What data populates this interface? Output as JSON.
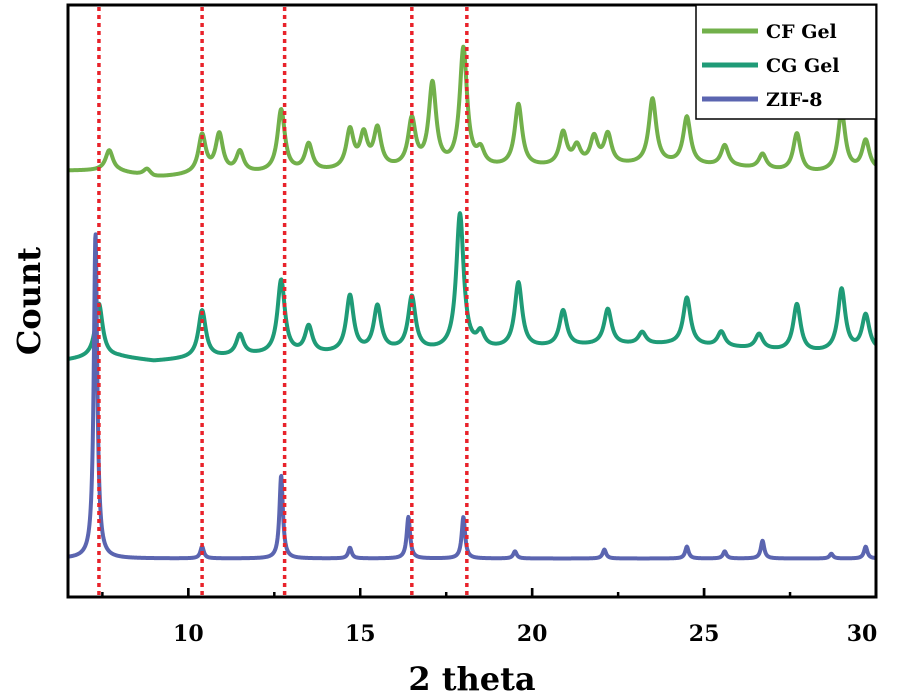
{
  "chart_data": {
    "type": "line",
    "title": "",
    "xlabel": "2 theta",
    "ylabel": "Count",
    "xlim": [
      6.5,
      30
    ],
    "ylim": [
      0,
      100
    ],
    "x_ticks": [
      10,
      15,
      20,
      25,
      30
    ],
    "x_tick_labels": [
      "10",
      "15",
      "20",
      "25",
      "30"
    ],
    "y_ticks_shown": false,
    "legend_position": "top-right",
    "reference_lines": {
      "style": "dotted",
      "color": "#e8232b",
      "x": [
        7.4,
        10.4,
        12.8,
        16.5,
        18.1
      ]
    },
    "series": [
      {
        "name": "CF Gel",
        "color": "#72b04b",
        "peak_width": 0.13,
        "baseline": [
          [
            6.5,
            72
          ],
          [
            7.4,
            72
          ],
          [
            8,
            71.8
          ],
          [
            9,
            70.8
          ],
          [
            10,
            71.2
          ],
          [
            12,
            71.5
          ],
          [
            14,
            71.8
          ],
          [
            16,
            72.2
          ],
          [
            18,
            72.3
          ],
          [
            20,
            72.5
          ],
          [
            22,
            72.8
          ],
          [
            24,
            73
          ],
          [
            26,
            72.5
          ],
          [
            28,
            71.5
          ],
          [
            30,
            72
          ]
        ],
        "peaks": [
          [
            7.7,
            3.5
          ],
          [
            8.8,
            1.2
          ],
          [
            10.4,
            6.5
          ],
          [
            10.9,
            6.5
          ],
          [
            11.5,
            3.5
          ],
          [
            12.7,
            10.5
          ],
          [
            13.5,
            4.5
          ],
          [
            14.7,
            6.5
          ],
          [
            15.1,
            5.5
          ],
          [
            15.5,
            6.5
          ],
          [
            16.5,
            8
          ],
          [
            17.1,
            14
          ],
          [
            18.0,
            20
          ],
          [
            18.5,
            2.5
          ],
          [
            19.6,
            10.5
          ],
          [
            20.9,
            5.5
          ],
          [
            21.3,
            3
          ],
          [
            21.8,
            4.5
          ],
          [
            22.2,
            5
          ],
          [
            23.5,
            11
          ],
          [
            24.5,
            8
          ],
          [
            25.6,
            3.5
          ],
          [
            26.7,
            2.5
          ],
          [
            27.7,
            6.5
          ],
          [
            29.0,
            10
          ],
          [
            29.7,
            5
          ]
        ]
      },
      {
        "name": "CG Gel",
        "color": "#1f9b77",
        "peak_width": 0.13,
        "baseline": [
          [
            6.5,
            40
          ],
          [
            7.4,
            40.5
          ],
          [
            8,
            40.5
          ],
          [
            9,
            39.8
          ],
          [
            10,
            40.2
          ],
          [
            12,
            40.8
          ],
          [
            14,
            41
          ],
          [
            16,
            41.5
          ],
          [
            18,
            41.5
          ],
          [
            20,
            42
          ],
          [
            22,
            42.5
          ],
          [
            24,
            42.6
          ],
          [
            26,
            42
          ],
          [
            28,
            41.2
          ],
          [
            30,
            41.5
          ]
        ],
        "peaks": [
          [
            7.4,
            9
          ],
          [
            10.4,
            8
          ],
          [
            11.5,
            3.5
          ],
          [
            12.7,
            12.5
          ],
          [
            13.5,
            4.5
          ],
          [
            14.7,
            9.5
          ],
          [
            15.5,
            7.5
          ],
          [
            16.5,
            9
          ],
          [
            17.9,
            23
          ],
          [
            18.5,
            2.5
          ],
          [
            19.6,
            11
          ],
          [
            20.9,
            6
          ],
          [
            22.2,
            6
          ],
          [
            23.2,
            2
          ],
          [
            24.5,
            8
          ],
          [
            25.5,
            2.5
          ],
          [
            26.6,
            2.5
          ],
          [
            27.7,
            8
          ],
          [
            29.0,
            10.5
          ],
          [
            29.7,
            6
          ]
        ]
      },
      {
        "name": "ZIF-8",
        "color": "#5b65b0",
        "peak_width": 0.06,
        "baseline": [
          [
            6.5,
            6.5
          ],
          [
            30,
            6.5
          ]
        ],
        "peaks": [
          [
            7.3,
            55
          ],
          [
            10.4,
            2
          ],
          [
            12.7,
            14
          ],
          [
            14.7,
            1.8
          ],
          [
            16.4,
            7
          ],
          [
            18.0,
            7
          ],
          [
            19.5,
            1.2
          ],
          [
            22.1,
            1.5
          ],
          [
            24.5,
            2
          ],
          [
            25.6,
            1.2
          ],
          [
            26.7,
            3
          ],
          [
            28.7,
            0.8
          ],
          [
            29.7,
            2
          ]
        ]
      }
    ]
  }
}
